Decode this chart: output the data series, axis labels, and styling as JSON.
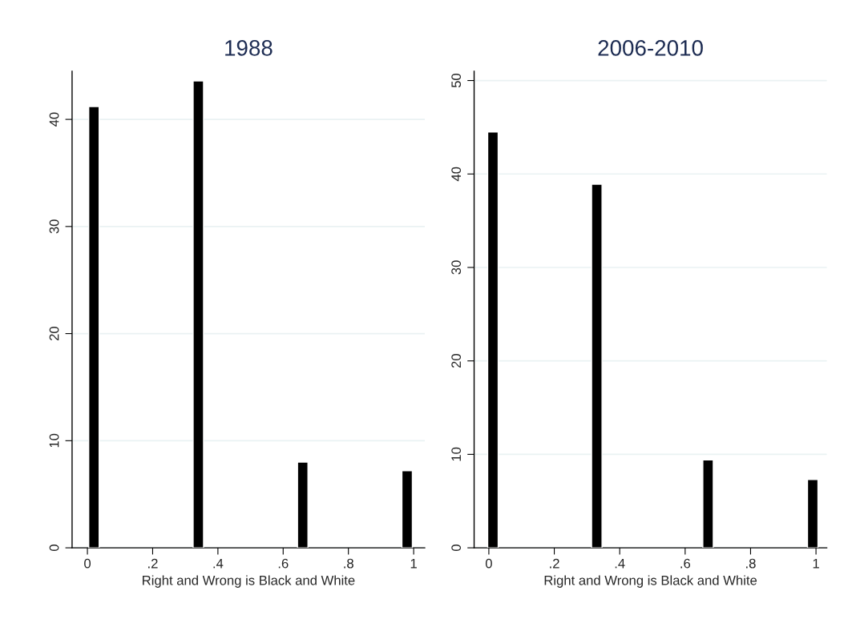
{
  "chart_data": [
    {
      "type": "bar",
      "title": "1988",
      "xlabel": "Right and Wrong is Black and White",
      "x": [
        0.02,
        0.34,
        0.66,
        0.98
      ],
      "values": [
        41.2,
        43.6,
        8.0,
        7.2
      ],
      "color": "#000000",
      "xlim": [
        -0.047,
        1.034
      ],
      "xticks": [
        {
          "value": 0,
          "label": "0"
        },
        {
          "value": 0.2,
          "label": ".2"
        },
        {
          "value": 0.4,
          "label": ".4"
        },
        {
          "value": 0.6,
          "label": ".6"
        },
        {
          "value": 0.8,
          "label": ".8"
        },
        {
          "value": 1,
          "label": "1"
        }
      ],
      "ylim": [
        0,
        44.5
      ],
      "yticks": [
        0,
        10,
        20,
        30,
        40
      ],
      "grid": "y"
    },
    {
      "type": "bar",
      "title": "2006-2010",
      "xlabel": "Right and Wrong is Black and White",
      "x": [
        0.0125,
        0.33,
        0.67,
        0.99
      ],
      "values": [
        44.5,
        38.9,
        9.4,
        7.3
      ],
      "color": "#000000",
      "xlim": [
        -0.045,
        1.033
      ],
      "xticks": [
        {
          "value": 0,
          "label": "0"
        },
        {
          "value": 0.2,
          "label": ".2"
        },
        {
          "value": 0.4,
          "label": ".4"
        },
        {
          "value": 0.6,
          "label": ".6"
        },
        {
          "value": 0.8,
          "label": ".8"
        },
        {
          "value": 1,
          "label": "1"
        }
      ],
      "ylim": [
        0,
        51
      ],
      "yticks": [
        0,
        10,
        20,
        30,
        40,
        50
      ],
      "grid": "y"
    }
  ]
}
